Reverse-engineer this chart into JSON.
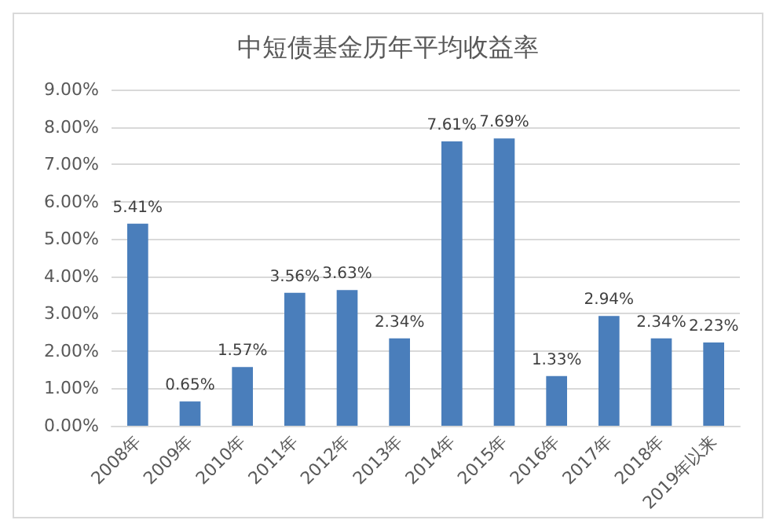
{
  "chart_data": {
    "type": "bar",
    "title": "中短债基金历年平均收益率",
    "categories": [
      "2008年",
      "2009年",
      "2010年",
      "2011年",
      "2012年",
      "2013年",
      "2014年",
      "2015年",
      "2016年",
      "2017年",
      "2018年",
      "2019年以来"
    ],
    "values": [
      5.41,
      0.65,
      1.57,
      3.56,
      3.63,
      2.34,
      7.61,
      7.69,
      1.33,
      2.94,
      2.34,
      2.23
    ],
    "value_labels": [
      "5.41%",
      "0.65%",
      "1.57%",
      "3.56%",
      "3.63%",
      "2.34%",
      "7.61%",
      "7.69%",
      "1.33%",
      "2.94%",
      "2.34%",
      "2.23%"
    ],
    "color": "#4a7ebb",
    "ylim": [
      0,
      9
    ],
    "yticks": [
      {
        "value": 0,
        "label": "0.00%"
      },
      {
        "value": 1,
        "label": "1.00%"
      },
      {
        "value": 2,
        "label": "2.00%"
      },
      {
        "value": 3,
        "label": "3.00%"
      },
      {
        "value": 4,
        "label": "4.00%"
      },
      {
        "value": 5,
        "label": "5.00%"
      },
      {
        "value": 6,
        "label": "6.00%"
      },
      {
        "value": 7,
        "label": "7.00%"
      },
      {
        "value": 8,
        "label": "8.00%"
      },
      {
        "value": 9,
        "label": "9.00%"
      }
    ],
    "grid": "y"
  }
}
